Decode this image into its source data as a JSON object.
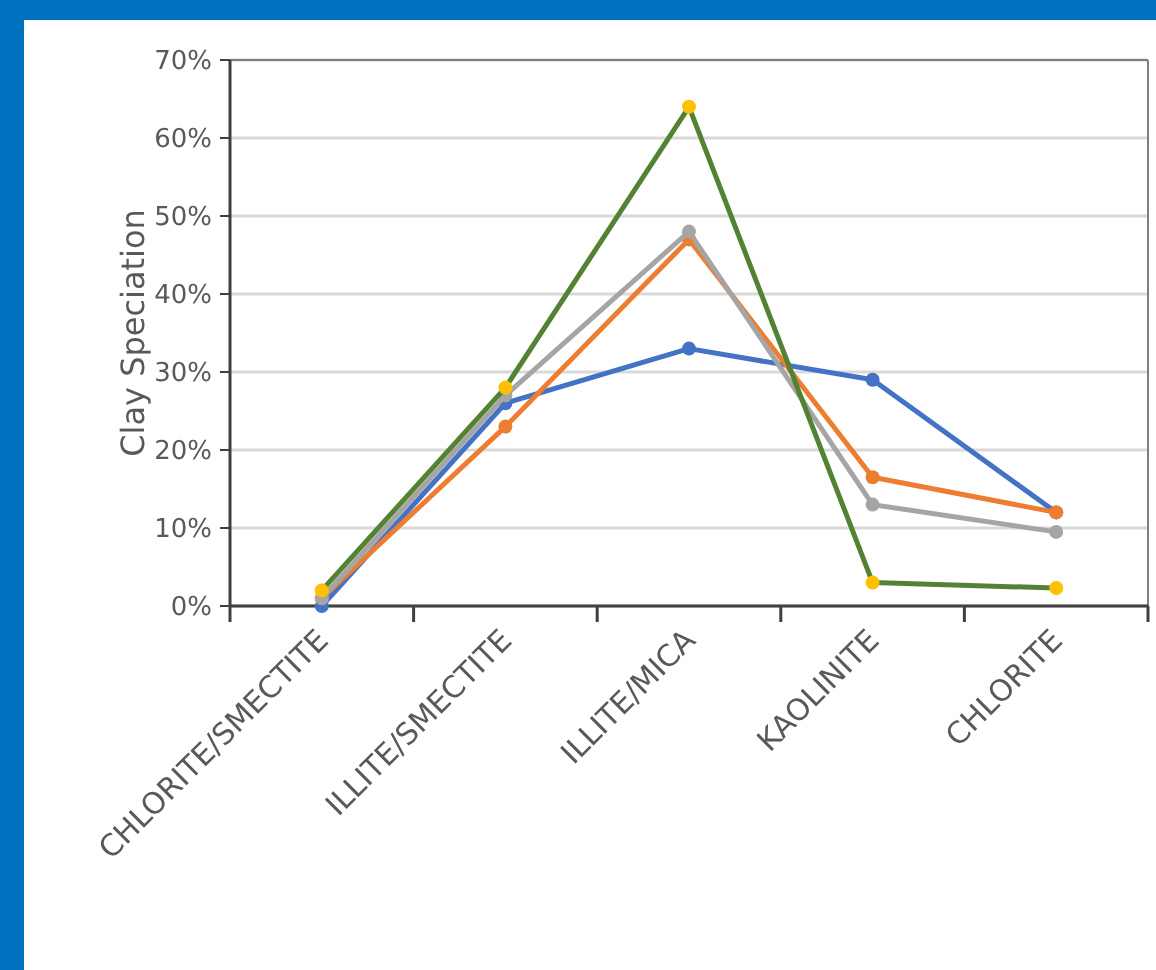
{
  "chart_data": {
    "type": "line",
    "ylabel": "Clay Speciation",
    "categories": [
      "CHLORITE/SMECTITE",
      "ILLITE/SMECTITE",
      "ILLITE/MICA",
      "KAOLINITE",
      "CHLORITE"
    ],
    "series": [
      {
        "color": "#4472c4",
        "values": [
          0,
          26,
          33,
          29,
          12
        ]
      },
      {
        "color": "#ed7d31",
        "values": [
          1,
          23,
          47,
          16.5,
          12
        ]
      },
      {
        "color": "#a5a5a5",
        "values": [
          1,
          27,
          48,
          13,
          9.5
        ]
      },
      {
        "color": "#548235",
        "colors": [
          "#ffc000",
          "#ffc000",
          "#ffc000",
          "#ffc000",
          "#ffc000"
        ],
        "values": [
          2,
          28,
          64,
          3,
          2.3
        ]
      }
    ],
    "ylim": [
      0,
      70
    ],
    "yticks": [
      {
        "value": 0,
        "label": "0%"
      },
      {
        "value": 10,
        "label": "10%"
      },
      {
        "value": 20,
        "label": "20%"
      },
      {
        "value": 30,
        "label": "30%"
      },
      {
        "value": 40,
        "label": "40%"
      },
      {
        "value": 50,
        "label": "50%"
      },
      {
        "value": 60,
        "label": "60%"
      },
      {
        "value": 70,
        "label": "70%"
      }
    ],
    "grid": "y",
    "marker": "circle",
    "line_style": "solid"
  }
}
